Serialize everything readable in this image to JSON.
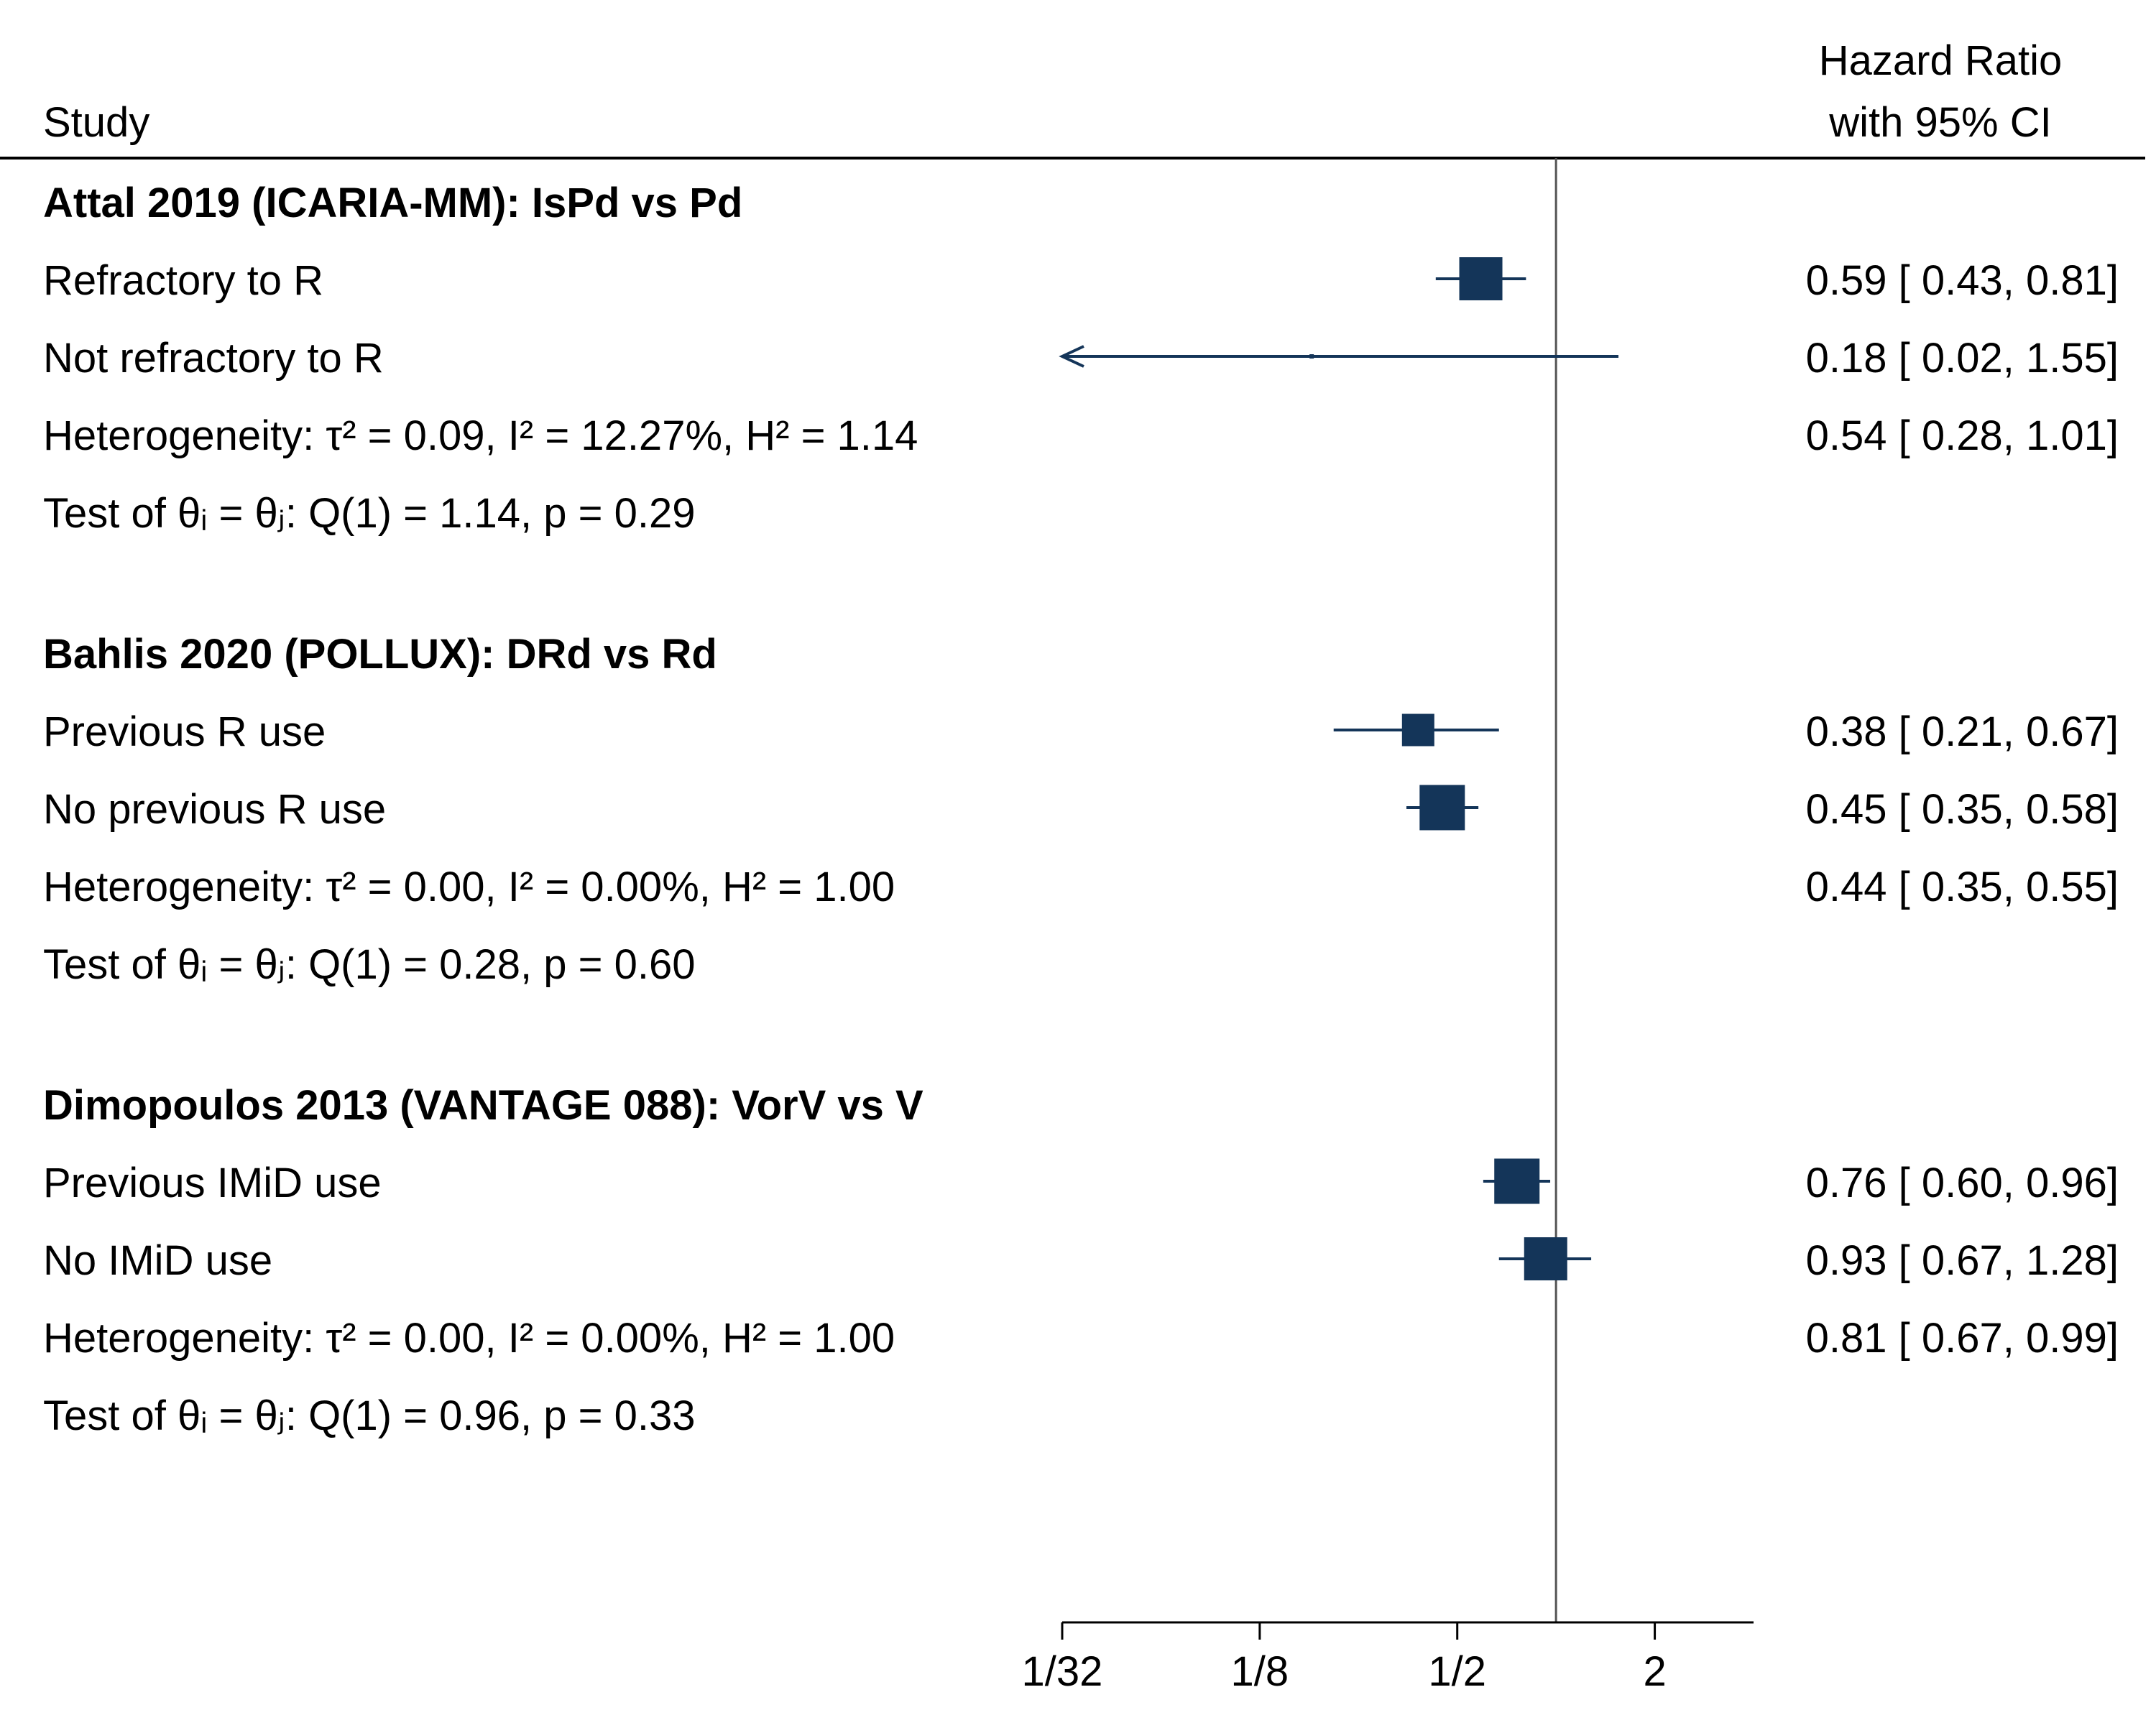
{
  "chart_data": {
    "type": "forest",
    "header": {
      "study": "Study",
      "effect_line1": "Hazard Ratio",
      "effect_line2": "with 95% CI"
    },
    "x_axis": {
      "scale": "log2",
      "range": [
        0.03125,
        4
      ],
      "ticks": [
        {
          "value": 0.03125,
          "label": "1/32"
        },
        {
          "value": 0.125,
          "label": "1/8"
        },
        {
          "value": 0.5,
          "label": "1/2"
        },
        {
          "value": 2,
          "label": "2"
        }
      ],
      "reference_line": 1
    },
    "groups": [
      {
        "title": "Attal 2019 (ICARIA-MM): IsPd vs Pd",
        "studies": [
          {
            "label": "Refractory to R",
            "hr": 0.59,
            "lo": 0.43,
            "hi": 0.81,
            "ci_text": "0.59 [ 0.43,  0.81]",
            "weight": 1.0
          },
          {
            "label": "Not refractory to R",
            "hr": 0.18,
            "lo": 0.02,
            "hi": 1.55,
            "ci_text": "0.18 [ 0.02,  1.55]",
            "weight": 0.1
          }
        ],
        "heterogeneity": {
          "text": "Heterogeneity: τ² = 0.09, I² = 12.27%, H² = 1.14",
          "ci_text": "0.54 [ 0.28,  1.01]"
        },
        "test": {
          "text": "Test of θᵢ = θⱼ: Q(1) = 1.14, p = 0.29"
        }
      },
      {
        "title": "Bahlis 2020 (POLLUX): DRd vs Rd",
        "studies": [
          {
            "label": "Previous R use",
            "hr": 0.38,
            "lo": 0.21,
            "hi": 0.67,
            "ci_text": "0.38 [ 0.21,  0.67]",
            "weight": 0.75
          },
          {
            "label": "No previous R use",
            "hr": 0.45,
            "lo": 0.35,
            "hi": 0.58,
            "ci_text": "0.45 [ 0.35,  0.58]",
            "weight": 1.05
          }
        ],
        "heterogeneity": {
          "text": "Heterogeneity: τ² = 0.00, I² = 0.00%, H² = 1.00",
          "ci_text": "0.44 [ 0.35,  0.55]"
        },
        "test": {
          "text": "Test of θᵢ = θⱼ: Q(1) = 0.28, p = 0.60"
        }
      },
      {
        "title": "Dimopoulos 2013 (VANTAGE 088): VorV vs V",
        "studies": [
          {
            "label": "Previous IMiD use",
            "hr": 0.76,
            "lo": 0.6,
            "hi": 0.96,
            "ci_text": "0.76 [ 0.60,  0.96]",
            "weight": 1.05
          },
          {
            "label": "No IMiD use",
            "hr": 0.93,
            "lo": 0.67,
            "hi": 1.28,
            "ci_text": "0.93 [ 0.67,  1.28]",
            "weight": 1.0
          }
        ],
        "heterogeneity": {
          "text": "Heterogeneity: τ² = 0.00, I² = 0.00%, H² = 1.00",
          "ci_text": "0.81 [ 0.67,  0.99]"
        },
        "test": {
          "text": "Test of θᵢ = θⱼ: Q(1) = 0.96, p = 0.33"
        }
      }
    ],
    "colors": {
      "marker": "#143559",
      "ci_line": "#143559",
      "reference": "#555555",
      "rule": "#000000"
    }
  }
}
